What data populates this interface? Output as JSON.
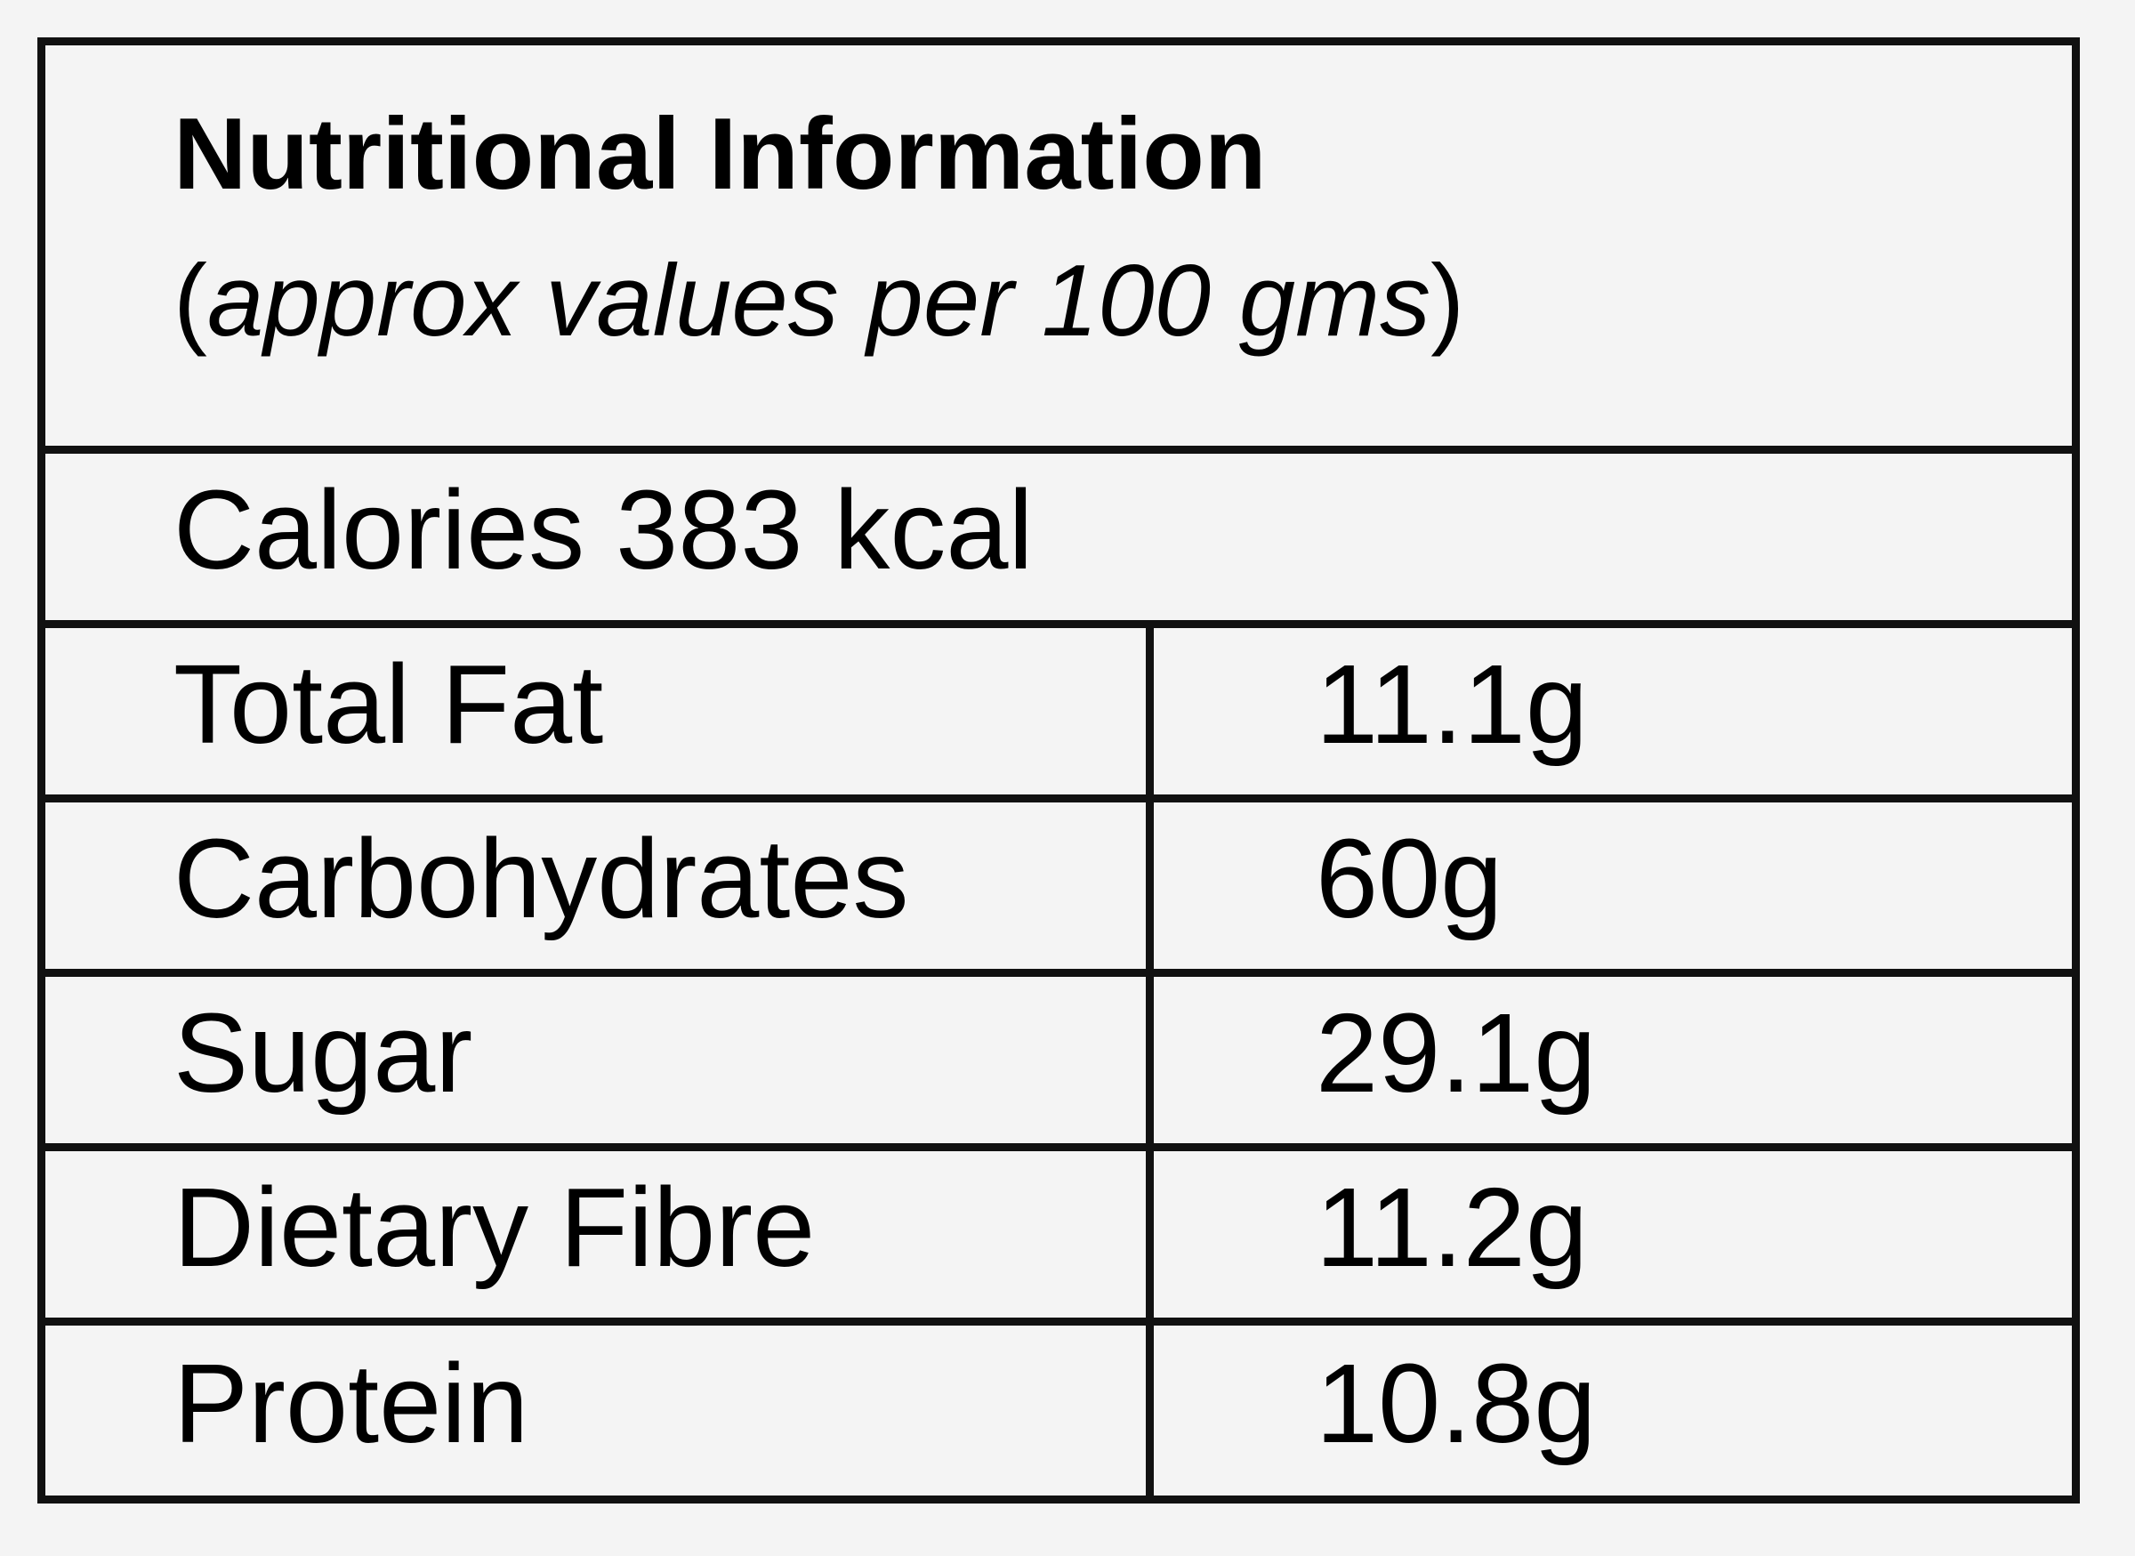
{
  "table": {
    "title": "Nutritional Information",
    "subtitle": {
      "open": "(",
      "text": "approx values per 100 gms",
      "close": ")"
    },
    "calories": "Calories 383 kcal",
    "rows": [
      {
        "label": "Total Fat",
        "value": "11.1g"
      },
      {
        "label": "Carbohydrates",
        "value": "60g"
      },
      {
        "label": "Sugar",
        "value": "29.1g"
      },
      {
        "label": "Dietary Fibre",
        "value": "11.2g"
      },
      {
        "label": "Protein",
        "value": "10.8g"
      }
    ]
  }
}
